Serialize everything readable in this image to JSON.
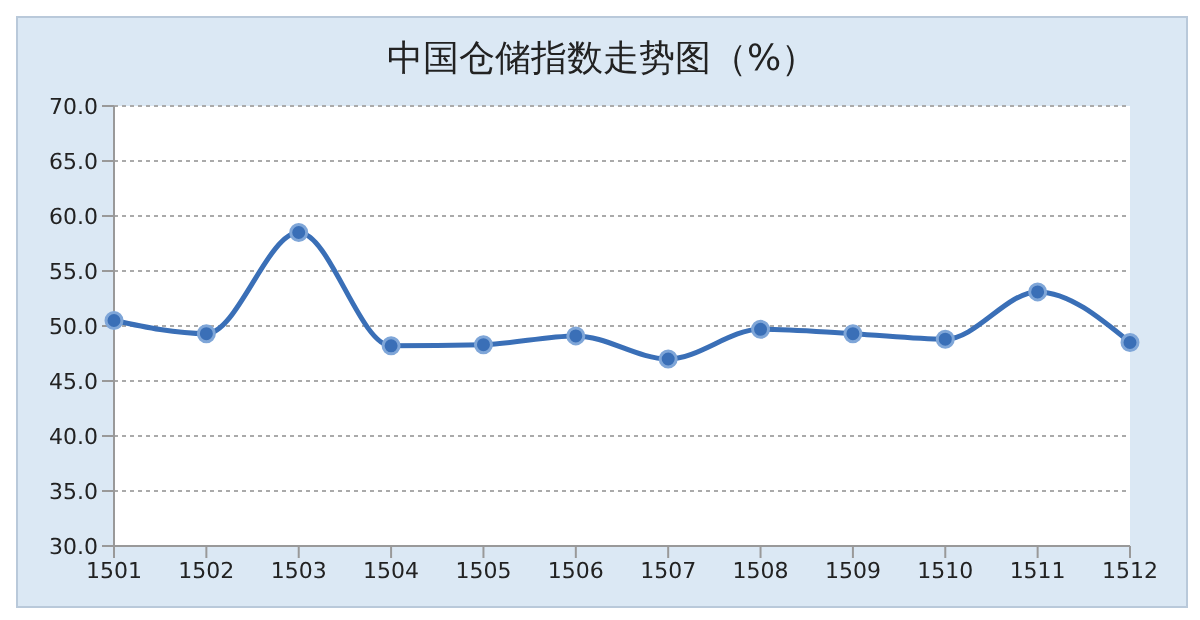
{
  "chart_data": {
    "type": "line",
    "title": "中国仓储指数走势图（%）",
    "categories": [
      "1501",
      "1502",
      "1503",
      "1504",
      "1505",
      "1506",
      "1507",
      "1508",
      "1509",
      "1510",
      "1511",
      "1512"
    ],
    "series": [
      {
        "color": "#3a6fb7",
        "values": [
          50.5,
          49.3,
          58.5,
          48.2,
          48.3,
          49.1,
          47.0,
          49.7,
          49.3,
          48.8,
          53.1,
          48.5
        ]
      }
    ],
    "ylim": [
      30,
      70
    ],
    "yticks": [
      {
        "value": 30,
        "label": "30.0"
      },
      {
        "value": 35,
        "label": "35.0"
      },
      {
        "value": 40,
        "label": "40.0"
      },
      {
        "value": 45,
        "label": "45.0"
      },
      {
        "value": 50,
        "label": "50.0"
      },
      {
        "value": 55,
        "label": "55.0"
      },
      {
        "value": 60,
        "label": "60.0"
      },
      {
        "value": 65,
        "label": "65.0"
      },
      {
        "value": 70,
        "label": "70.0"
      }
    ],
    "grid": "y",
    "marker": "circle",
    "line_style": "solid",
    "legend": false
  }
}
